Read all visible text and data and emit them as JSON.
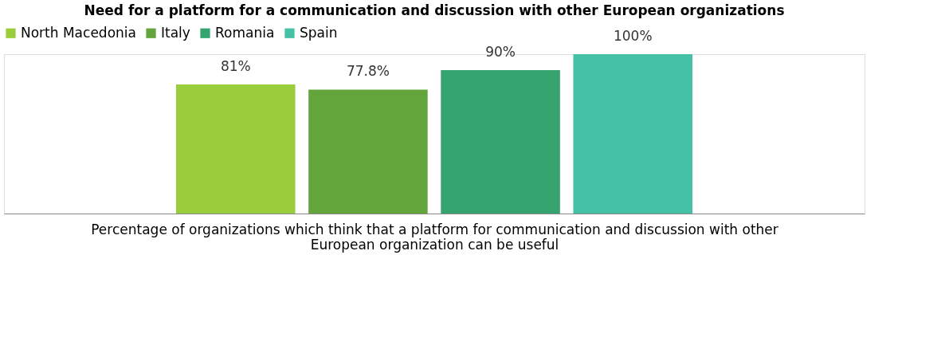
{
  "chart_data": {
    "type": "bar",
    "title": "Need for a platform for a communication  and discussion with other European organizations",
    "xlabel": "Percentage of organizations which think that a platform for communication and discussion with other European organization can be useful",
    "categories": [
      null
    ],
    "series": [
      {
        "name": "North Macedonia",
        "color": "#9acd3c",
        "values": [
          81
        ],
        "value_labels": [
          "81%"
        ]
      },
      {
        "name": "Italy",
        "color": "#63a53a",
        "values": [
          77.8
        ],
        "value_labels": [
          "77.8%"
        ]
      },
      {
        "name": "Romania",
        "color": "#35a46e",
        "values": [
          90
        ],
        "value_labels": [
          "90%"
        ]
      },
      {
        "name": "Spain",
        "color": "#45c2a6",
        "values": [
          100
        ],
        "value_labels": [
          "100%"
        ]
      }
    ],
    "legend": "top",
    "grid": false
  }
}
